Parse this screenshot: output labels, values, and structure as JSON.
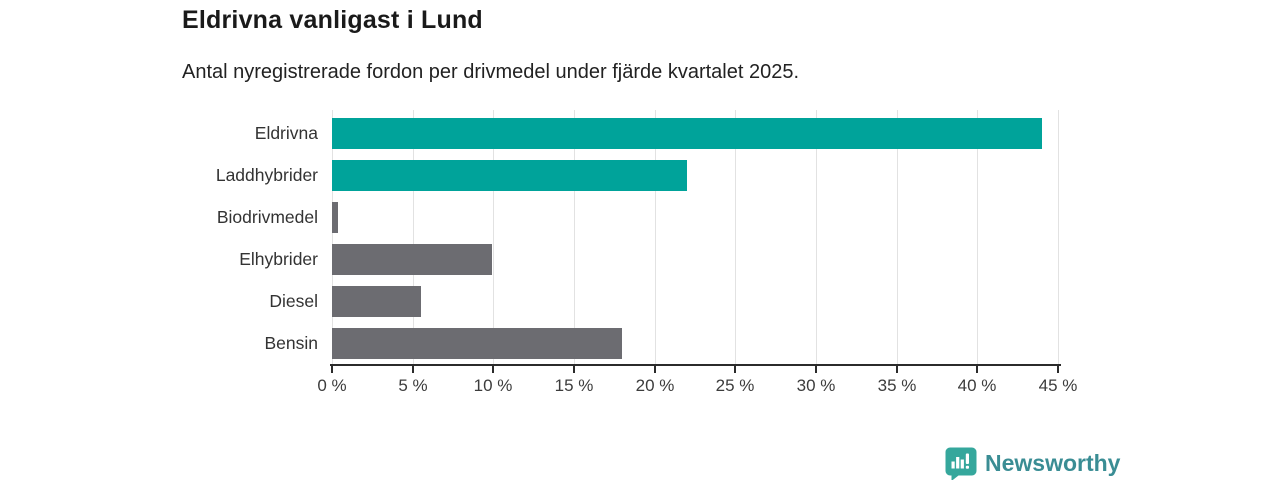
{
  "header": {
    "title": "Eldrivna vanligast i Lund",
    "subtitle": "Antal nyregistrerade fordon per drivmedel under fjärde kvartalet 2025."
  },
  "chart_data": {
    "type": "bar",
    "orientation": "horizontal",
    "title": "Eldrivna vanligast i Lund",
    "subtitle": "Antal nyregistrerade fordon per drivmedel under fjärde kvartalet 2025.",
    "categories": [
      "Eldrivna",
      "Laddhybrider",
      "Biodrivmedel",
      "Elhybrider",
      "Diesel",
      "Bensin"
    ],
    "values": [
      44,
      22,
      0.4,
      9.9,
      5.5,
      18
    ],
    "unit": "%",
    "bar_colors": [
      "#00A39A",
      "#00A39A",
      "#6C6C71",
      "#6C6C71",
      "#6C6C71",
      "#6C6C71"
    ],
    "xlabel": "",
    "ylabel": "",
    "xlim": [
      0,
      45
    ],
    "x_ticks": [
      0,
      5,
      10,
      15,
      20,
      25,
      30,
      35,
      40,
      45
    ],
    "x_tick_labels": [
      "0 %",
      "5 %",
      "10 %",
      "15 %",
      "20 %",
      "25 %",
      "30 %",
      "35 %",
      "40 %",
      "45 %"
    ],
    "grid": true,
    "legend": "none"
  },
  "colors": {
    "accent_teal": "#00A39A",
    "neutral_gray": "#6C6C71",
    "gridline": "#e2e2e2",
    "axis": "#2b2b2b",
    "logo_icon_teal": "#35A79C",
    "logo_text_teal": "#3a8d94"
  },
  "footer": {
    "brand": "Newsworthy",
    "logo_icon": "bar-chart-speech-bubble-icon"
  }
}
